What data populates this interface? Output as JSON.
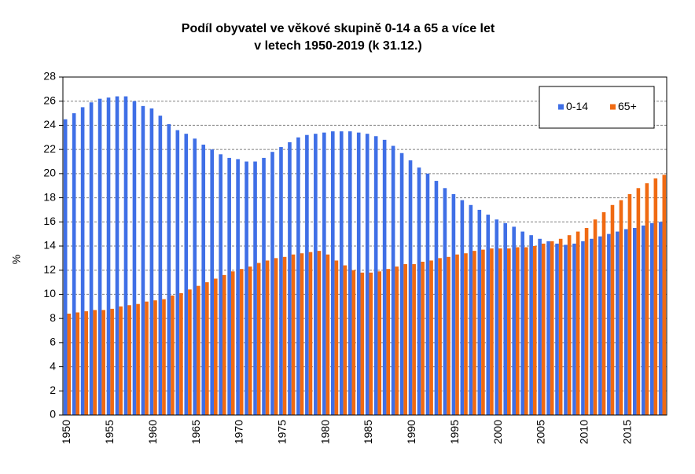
{
  "chart_data": {
    "type": "bar",
    "title": [
      "Podíl obyvatel ve věkové skupině 0-14 a 65 a více let",
      "v letech 1950-2019 (k 31.12.)"
    ],
    "y_label": "%",
    "categories": [
      "1950",
      null,
      null,
      null,
      null,
      "1955",
      null,
      null,
      null,
      null,
      "1960",
      null,
      null,
      null,
      null,
      "1965",
      null,
      null,
      null,
      null,
      "1970",
      null,
      null,
      null,
      null,
      "1975",
      null,
      null,
      null,
      null,
      "1980",
      null,
      null,
      null,
      null,
      "1985",
      null,
      null,
      null,
      null,
      "1990",
      null,
      null,
      null,
      null,
      "1995",
      null,
      null,
      null,
      null,
      "2000",
      null,
      null,
      null,
      null,
      "2005",
      null,
      null,
      null,
      null,
      "2010",
      null,
      null,
      null,
      null,
      "2015",
      null,
      null,
      null,
      null
    ],
    "series": [
      {
        "name": "0-14",
        "color": "#3f6fe6",
        "values": [
          24.5,
          25.0,
          25.5,
          25.9,
          26.2,
          26.3,
          26.4,
          26.4,
          26.0,
          25.6,
          25.4,
          24.8,
          24.1,
          23.6,
          23.3,
          22.9,
          22.4,
          22.0,
          21.6,
          21.3,
          21.2,
          21.0,
          21.0,
          21.3,
          21.8,
          22.2,
          22.6,
          23.0,
          23.2,
          23.3,
          23.4,
          23.5,
          23.5,
          23.5,
          23.4,
          23.3,
          23.1,
          22.8,
          22.3,
          21.7,
          21.1,
          20.5,
          20.0,
          19.4,
          18.8,
          18.3,
          17.8,
          17.4,
          17.0,
          16.6,
          16.2,
          15.9,
          15.6,
          15.2,
          14.9,
          14.6,
          14.4,
          14.2,
          14.1,
          14.2,
          14.4,
          14.6,
          14.8,
          15.0,
          15.2,
          15.4,
          15.5,
          15.7,
          15.9,
          16.0
        ]
      },
      {
        "name": "65+",
        "color": "#f06a12",
        "values": [
          8.4,
          8.5,
          8.6,
          8.7,
          8.7,
          8.8,
          9.0,
          9.1,
          9.2,
          9.4,
          9.5,
          9.6,
          9.9,
          10.1,
          10.4,
          10.7,
          11.0,
          11.3,
          11.6,
          11.9,
          12.1,
          12.3,
          12.6,
          12.8,
          13.0,
          13.1,
          13.3,
          13.4,
          13.5,
          13.6,
          13.3,
          12.8,
          12.4,
          12.0,
          11.8,
          11.8,
          11.9,
          12.1,
          12.3,
          12.5,
          12.5,
          12.7,
          12.8,
          13.0,
          13.1,
          13.3,
          13.4,
          13.6,
          13.7,
          13.8,
          13.8,
          13.8,
          13.9,
          13.9,
          14.0,
          14.2,
          14.4,
          14.6,
          14.9,
          15.2,
          15.5,
          16.2,
          16.8,
          17.4,
          17.8,
          18.3,
          18.8,
          19.2,
          19.6,
          19.9
        ]
      }
    ],
    "ylim": [
      0,
      28
    ],
    "yticks": [
      0,
      2,
      4,
      6,
      8,
      10,
      12,
      14,
      16,
      18,
      20,
      22,
      24,
      26,
      28
    ],
    "grid": true,
    "legend": "top-right"
  }
}
